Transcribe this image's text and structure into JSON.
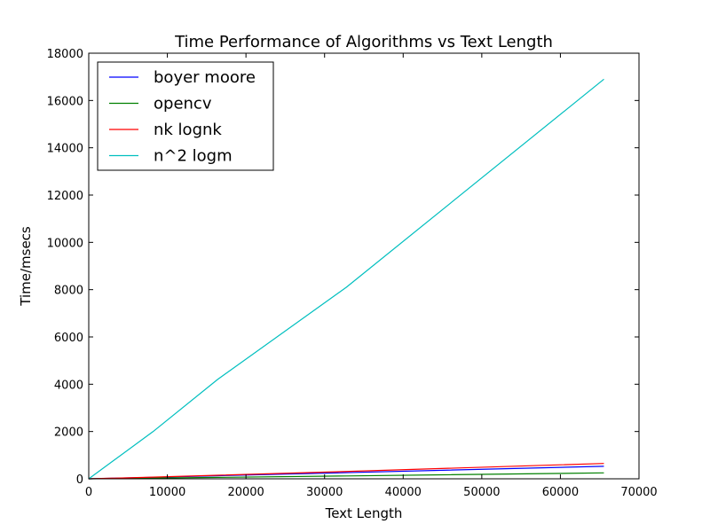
{
  "chart_data": {
    "type": "line",
    "title": "Time Performance of Algorithms vs Text Length",
    "xlabel": "Text Length",
    "ylabel": "Time/msecs",
    "xlim": [
      0,
      70000
    ],
    "ylim": [
      0,
      18000
    ],
    "xticks": [
      0,
      10000,
      20000,
      30000,
      40000,
      50000,
      60000,
      70000
    ],
    "yticks": [
      0,
      2000,
      4000,
      6000,
      8000,
      10000,
      12000,
      14000,
      16000,
      18000
    ],
    "grid": false,
    "legend_position": "top-left",
    "series": [
      {
        "name": "boyer moore",
        "color": "#0000ff",
        "x": [
          0,
          8192,
          16384,
          32768,
          65536
        ],
        "y": [
          0,
          60,
          130,
          260,
          530
        ]
      },
      {
        "name": "opencv",
        "color": "#008000",
        "x": [
          0,
          8192,
          16384,
          32768,
          65536
        ],
        "y": [
          0,
          30,
          60,
          120,
          250
        ]
      },
      {
        "name": "nk lognk",
        "color": "#ff0000",
        "x": [
          0,
          8192,
          16384,
          32768,
          65536
        ],
        "y": [
          0,
          70,
          150,
          310,
          650
        ]
      },
      {
        "name": "n^2 logm",
        "color": "#00bfbf",
        "x": [
          0,
          8192,
          16384,
          32768,
          65536
        ],
        "y": [
          0,
          2000,
          4200,
          8100,
          16900
        ]
      }
    ]
  }
}
